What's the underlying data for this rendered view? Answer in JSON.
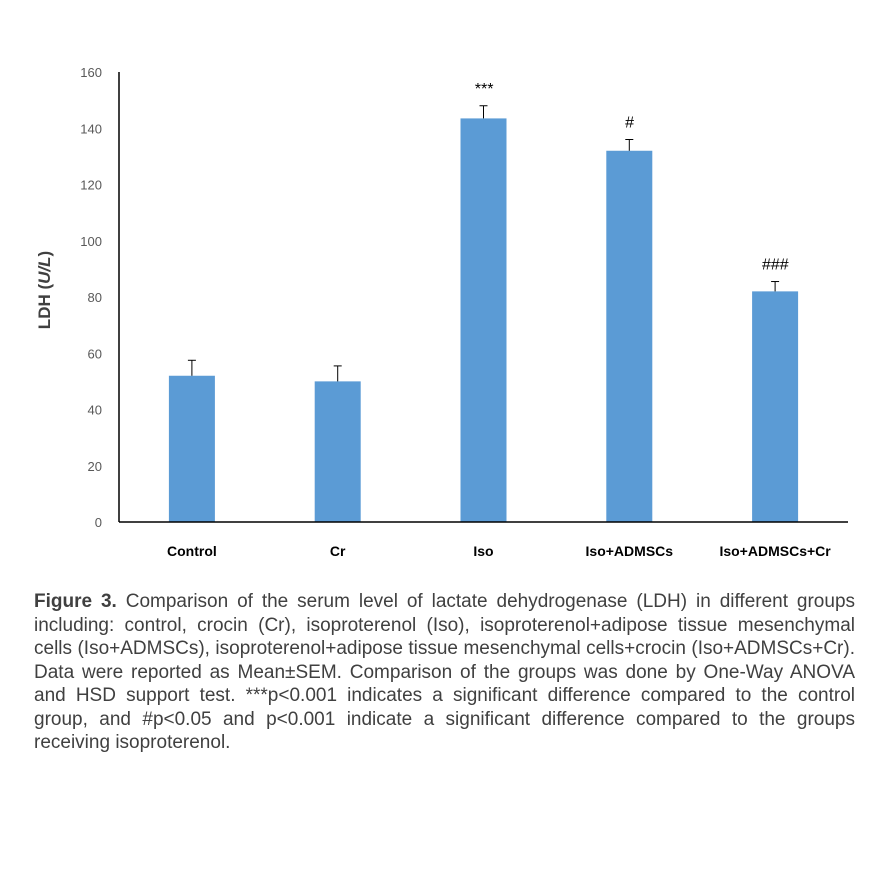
{
  "chart_data": {
    "type": "bar",
    "categories": [
      "Control",
      "Cr",
      "Iso",
      "Iso+ADMSCs",
      "Iso+ADMSCs+Cr"
    ],
    "values": [
      52,
      50,
      143.5,
      132,
      82
    ],
    "error_upper": [
      57.5,
      55.5,
      148,
      136,
      85.5
    ],
    "annotations": [
      "",
      "",
      "***",
      "#",
      "###"
    ],
    "ylabel_prefix": "LDH (",
    "ylabel_unit": "U/L",
    "ylabel_suffix": ")",
    "ylim": [
      0,
      160
    ],
    "yticks": [
      0,
      20,
      40,
      60,
      80,
      100,
      120,
      140,
      160
    ],
    "grid": false,
    "bar_color": "#5B9BD5"
  },
  "caption": {
    "label": "Figure 3.",
    "text": " Comparison of the serum level of lactate dehydrogenase (LDH) in different groups including: control, crocin (Cr), isoproterenol (Iso), isoproterenol+adipose tissue mesenchymal cells (Iso+ADMSCs), isoproterenol+adipose tissue mesenchymal cells+crocin (Iso+ADMSCs+Cr). Data were reported as Mean±SEM. Comparison of the groups was done by One-Way ANOVA and HSD support test. ***p<0.001 indicates a significant difference compared to the control group, and #p<0.05 and p<0.001 indicate a significant difference compared to the groups receiving isoproterenol."
  }
}
